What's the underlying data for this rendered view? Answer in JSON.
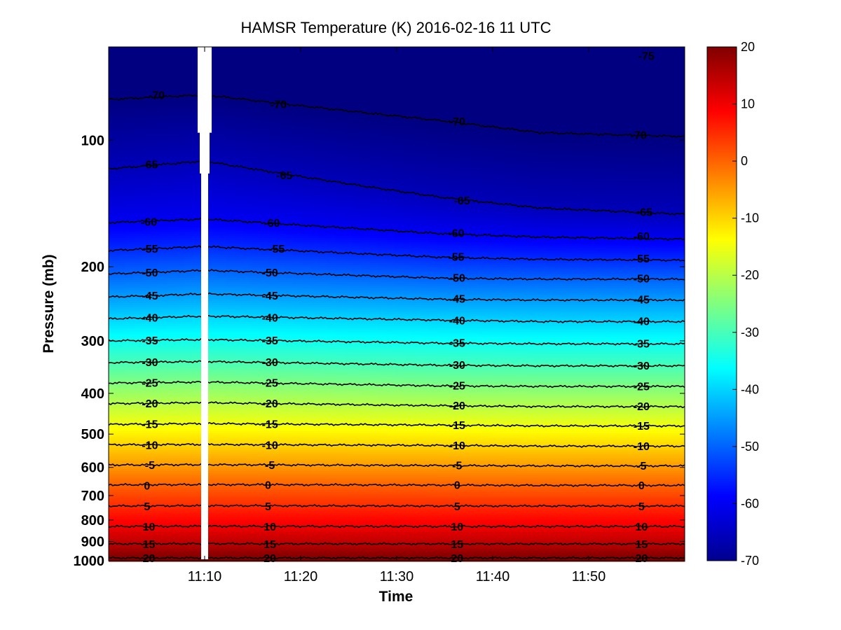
{
  "chart_data": {
    "type": "heatmap",
    "subtype": "filled-contour",
    "title": "HAMSR  Temperature (K) 2016-02-16 11 UTC",
    "xlabel": "Time",
    "ylabel": "Pressure (mb)",
    "x_ticks": [
      "11:10",
      "11:20",
      "11:30",
      "11:40",
      "11:50"
    ],
    "x_tick_minutes": [
      10,
      20,
      30,
      40,
      50
    ],
    "xlim_minutes": [
      0,
      60
    ],
    "y_ticks": [
      100,
      200,
      300,
      400,
      500,
      600,
      700,
      800,
      900,
      1000
    ],
    "ylim": [
      60,
      1000
    ],
    "y_scale": "log",
    "y_reversed": true,
    "colorbar": {
      "ticks": [
        20,
        10,
        0,
        -10,
        -20,
        -30,
        -40,
        -50,
        -60,
        -70
      ],
      "range": [
        -70,
        20
      ],
      "colormap": "jet"
    },
    "data_gap": {
      "x_minutes": 10
    },
    "contour_levels": [
      -75,
      -70,
      -65,
      -60,
      -55,
      -50,
      -45,
      -40,
      -35,
      -30,
      -25,
      -20,
      -15,
      -10,
      -5,
      0,
      5,
      10,
      15,
      20
    ],
    "contour_pressure_profile": {
      "x_minutes": [
        0,
        10,
        35,
        45,
        60
      ],
      "levels": {
        "-70": [
          80,
          78,
          90,
          96,
          98
        ],
        "-65": [
          117,
          112,
          137,
          145,
          150
        ],
        "-60": [
          157,
          154,
          167,
          170,
          172
        ],
        "-55": [
          183,
          179,
          190,
          192,
          193
        ],
        "-50": [
          208,
          204,
          213,
          214,
          214
        ],
        "-45": [
          236,
          232,
          239,
          240,
          240
        ],
        "-40": [
          266,
          262,
          268,
          270,
          270
        ],
        "-35": [
          300,
          298,
          304,
          305,
          305
        ],
        "-30": [
          338,
          336,
          343,
          344,
          344
        ],
        "-25": [
          378,
          376,
          384,
          385,
          385
        ],
        "-20": [
          423,
          421,
          428,
          430,
          430
        ],
        "-15": [
          474,
          472,
          476,
          478,
          478
        ],
        "-10": [
          530,
          529,
          532,
          534,
          534
        ],
        "-5": [
          592,
          591,
          594,
          595,
          595
        ],
        "0": [
          660,
          659,
          661,
          662,
          662
        ],
        "5": [
          741,
          740,
          741,
          741,
          741
        ],
        "10": [
          829,
          828,
          829,
          829,
          829
        ],
        "15": [
          912,
          911,
          912,
          912,
          912
        ],
        "20": [
          985,
          985,
          985,
          985,
          985
        ]
      }
    },
    "contour_labels": [
      {
        "text": "-75",
        "x_minutes": 56,
        "p": 63
      },
      {
        "text": "-70",
        "x_minutes": 5,
        "p": 78
      },
      {
        "text": "-70",
        "x_minutes": 17.7,
        "p": 82
      },
      {
        "text": "-70",
        "x_minutes": 36.3,
        "p": 90
      },
      {
        "text": "-70",
        "x_minutes": 55.2,
        "p": 97
      },
      {
        "text": "-65",
        "x_minutes": 4.3,
        "p": 114
      },
      {
        "text": "-65",
        "x_minutes": 18.3,
        "p": 121
      },
      {
        "text": "-65",
        "x_minutes": 36.8,
        "p": 139
      },
      {
        "text": "-65",
        "x_minutes": 55.8,
        "p": 148
      },
      {
        "text": "-60",
        "x_minutes": 4.2,
        "p": 156
      },
      {
        "text": "-60",
        "x_minutes": 17.0,
        "p": 157
      },
      {
        "text": "-60",
        "x_minutes": 36.2,
        "p": 166
      },
      {
        "text": "-60",
        "x_minutes": 55.5,
        "p": 169
      },
      {
        "text": "-55",
        "x_minutes": 4.3,
        "p": 181
      },
      {
        "text": "-55",
        "x_minutes": 17.5,
        "p": 181
      },
      {
        "text": "-55",
        "x_minutes": 36.2,
        "p": 189
      },
      {
        "text": "-55",
        "x_minutes": 55.5,
        "p": 191
      },
      {
        "text": "-50",
        "x_minutes": 4.3,
        "p": 206
      },
      {
        "text": "-50",
        "x_minutes": 16.8,
        "p": 206
      },
      {
        "text": "-50",
        "x_minutes": 36.3,
        "p": 212
      },
      {
        "text": "-50",
        "x_minutes": 55.5,
        "p": 213
      },
      {
        "text": "-45",
        "x_minutes": 4.3,
        "p": 234
      },
      {
        "text": "-45",
        "x_minutes": 16.8,
        "p": 234
      },
      {
        "text": "-45",
        "x_minutes": 36.3,
        "p": 238
      },
      {
        "text": "-45",
        "x_minutes": 55.5,
        "p": 239
      },
      {
        "text": "-40",
        "x_minutes": 4.3,
        "p": 264
      },
      {
        "text": "-40",
        "x_minutes": 16.8,
        "p": 264
      },
      {
        "text": "-40",
        "x_minutes": 36.3,
        "p": 268
      },
      {
        "text": "-40",
        "x_minutes": 55.5,
        "p": 269
      },
      {
        "text": "-35",
        "x_minutes": 4.3,
        "p": 299
      },
      {
        "text": "-35",
        "x_minutes": 16.8,
        "p": 299
      },
      {
        "text": "-35",
        "x_minutes": 36.3,
        "p": 303
      },
      {
        "text": "-35",
        "x_minutes": 55.5,
        "p": 304
      },
      {
        "text": "-30",
        "x_minutes": 4.3,
        "p": 337
      },
      {
        "text": "-30",
        "x_minutes": 16.8,
        "p": 337
      },
      {
        "text": "-30",
        "x_minutes": 36.3,
        "p": 342
      },
      {
        "text": "-30",
        "x_minutes": 55.5,
        "p": 343
      },
      {
        "text": "-25",
        "x_minutes": 4.3,
        "p": 377
      },
      {
        "text": "-25",
        "x_minutes": 16.8,
        "p": 377
      },
      {
        "text": "-25",
        "x_minutes": 36.3,
        "p": 383
      },
      {
        "text": "-25",
        "x_minutes": 55.5,
        "p": 384
      },
      {
        "text": "-20",
        "x_minutes": 4.3,
        "p": 422
      },
      {
        "text": "-20",
        "x_minutes": 16.8,
        "p": 422
      },
      {
        "text": "-20",
        "x_minutes": 36.3,
        "p": 427
      },
      {
        "text": "-20",
        "x_minutes": 55.5,
        "p": 429
      },
      {
        "text": "-15",
        "x_minutes": 4.3,
        "p": 473
      },
      {
        "text": "-15",
        "x_minutes": 16.8,
        "p": 473
      },
      {
        "text": "-15",
        "x_minutes": 36.3,
        "p": 475
      },
      {
        "text": "-15",
        "x_minutes": 55.5,
        "p": 477
      },
      {
        "text": "-10",
        "x_minutes": 4.3,
        "p": 530
      },
      {
        "text": "-10",
        "x_minutes": 16.8,
        "p": 530
      },
      {
        "text": "-10",
        "x_minutes": 36.3,
        "p": 531
      },
      {
        "text": "-10",
        "x_minutes": 55.5,
        "p": 533
      },
      {
        "text": "-5",
        "x_minutes": 4.3,
        "p": 591
      },
      {
        "text": "-5",
        "x_minutes": 16.8,
        "p": 591
      },
      {
        "text": "-5",
        "x_minutes": 36.3,
        "p": 593
      },
      {
        "text": "-5",
        "x_minutes": 55.5,
        "p": 594
      },
      {
        "text": "0",
        "x_minutes": 4.0,
        "p": 662
      },
      {
        "text": "0",
        "x_minutes": 16.6,
        "p": 660
      },
      {
        "text": "0",
        "x_minutes": 36.3,
        "p": 660
      },
      {
        "text": "0",
        "x_minutes": 55.5,
        "p": 661
      },
      {
        "text": "5",
        "x_minutes": 4.0,
        "p": 741
      },
      {
        "text": "5",
        "x_minutes": 16.6,
        "p": 741
      },
      {
        "text": "5",
        "x_minutes": 36.3,
        "p": 741
      },
      {
        "text": "5",
        "x_minutes": 55.5,
        "p": 741
      },
      {
        "text": "10",
        "x_minutes": 4.2,
        "p": 829
      },
      {
        "text": "10",
        "x_minutes": 16.8,
        "p": 829
      },
      {
        "text": "10",
        "x_minutes": 36.3,
        "p": 829
      },
      {
        "text": "10",
        "x_minutes": 55.5,
        "p": 829
      },
      {
        "text": "15",
        "x_minutes": 4.2,
        "p": 912
      },
      {
        "text": "15",
        "x_minutes": 16.8,
        "p": 912
      },
      {
        "text": "15",
        "x_minutes": 36.3,
        "p": 912
      },
      {
        "text": "15",
        "x_minutes": 55.5,
        "p": 912
      },
      {
        "text": "20",
        "x_minutes": 4.2,
        "p": 985
      },
      {
        "text": "20",
        "x_minutes": 16.8,
        "p": 985
      },
      {
        "text": "20",
        "x_minutes": 36.3,
        "p": 985
      },
      {
        "text": "20",
        "x_minutes": 55.5,
        "p": 985
      }
    ]
  }
}
